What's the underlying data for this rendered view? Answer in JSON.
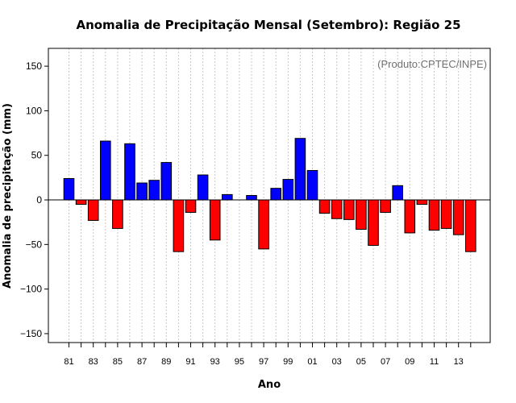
{
  "chart_data": {
    "type": "bar",
    "title": "Anomalia de Precipitação Mensal (Setembro): Região 25",
    "xlabel": "Ano",
    "ylabel": "Anomalia de precipitação (mm)",
    "credit": "(Produto:CPTEC/INPE)",
    "ylim": [
      -160,
      170
    ],
    "yticks": [
      -150,
      -100,
      -50,
      0,
      50,
      100,
      150
    ],
    "grid": true,
    "positive_color": "#0000ff",
    "negative_color": "#ff0000",
    "categories": [
      "81",
      "82",
      "83",
      "84",
      "85",
      "86",
      "87",
      "88",
      "89",
      "90",
      "91",
      "92",
      "93",
      "94",
      "95",
      "96",
      "97",
      "98",
      "99",
      "00",
      "01",
      "02",
      "03",
      "04",
      "05",
      "06",
      "07",
      "08",
      "09",
      "10",
      "11",
      "12",
      "13",
      "14"
    ],
    "xtick_labels": [
      "81",
      "83",
      "85",
      "87",
      "89",
      "91",
      "93",
      "95",
      "97",
      "99",
      "01",
      "03",
      "05",
      "07",
      "09",
      "11",
      "13"
    ],
    "values": [
      24,
      -5,
      -23,
      66,
      -32,
      63,
      19,
      22,
      42,
      -58,
      -14,
      28,
      -45,
      6,
      0,
      5,
      -55,
      13,
      23,
      69,
      33,
      -15,
      -21,
      -22,
      -33,
      -51,
      -14,
      16,
      -37,
      -5,
      -34,
      -32,
      -39,
      -58
    ]
  }
}
